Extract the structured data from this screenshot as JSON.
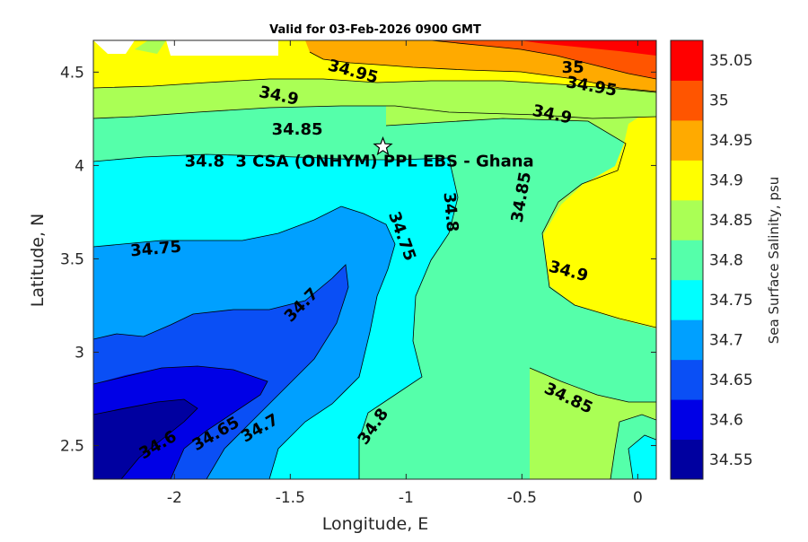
{
  "chart_data": {
    "type": "contour",
    "title": "Valid for 03-Feb-2026 0900 GMT",
    "xlabel": "Longitude, E",
    "ylabel": "Latitude, N",
    "xlim": [
      -2.35,
      0.08
    ],
    "ylim": [
      2.32,
      4.67
    ],
    "xticks": [
      -2,
      -1.5,
      -1,
      -0.5,
      0
    ],
    "xtick_labels": [
      "-2",
      "-1.5",
      "-1",
      "-0.5",
      "0"
    ],
    "yticks": [
      2.5,
      3,
      3.5,
      4,
      4.5
    ],
    "ytick_labels": [
      "2.5",
      "3",
      "3.5",
      "4",
      "4.5"
    ],
    "colorbar": {
      "label": "Sea Surface Salinity, psu",
      "levels": [
        34.55,
        34.6,
        34.65,
        34.7,
        34.75,
        34.8,
        34.85,
        34.9,
        34.95,
        35,
        35.05
      ],
      "tick_labels": [
        "34.55",
        "34.6",
        "34.65",
        "34.7",
        "34.75",
        "34.8",
        "34.85",
        "34.9",
        "34.95",
        "35",
        "35.05"
      ],
      "colors": [
        "#0000a0",
        "#0000e6",
        "#0a4ff5",
        "#00a0ff",
        "#00ffff",
        "#55ffaa",
        "#aaff55",
        "#ffff00",
        "#ffaa00",
        "#ff5500",
        "#ff0000"
      ]
    },
    "contour_labels": [
      {
        "text": "34.95",
        "lon": -1.23,
        "lat": 4.5,
        "angle": 15
      },
      {
        "text": "35",
        "lon": -0.28,
        "lat": 4.52,
        "angle": 0
      },
      {
        "text": "34.95",
        "lon": -0.2,
        "lat": 4.42,
        "angle": 10
      },
      {
        "text": "34.9",
        "lon": -1.55,
        "lat": 4.37,
        "angle": 12
      },
      {
        "text": "34.9",
        "lon": -0.37,
        "lat": 4.27,
        "angle": 12
      },
      {
        "text": "34.85",
        "lon": -1.47,
        "lat": 4.19,
        "angle": 0
      },
      {
        "text": "34.8",
        "lon": -1.87,
        "lat": 4.02,
        "angle": 0
      },
      {
        "text": "34.8",
        "lon": -0.81,
        "lat": 3.75,
        "angle": 85
      },
      {
        "text": "34.85",
        "lon": -0.5,
        "lat": 3.83,
        "angle": -80
      },
      {
        "text": "34.75",
        "lon": -2.08,
        "lat": 3.55,
        "angle": -5
      },
      {
        "text": "34.75",
        "lon": -1.02,
        "lat": 3.62,
        "angle": 70
      },
      {
        "text": "34.9",
        "lon": -0.3,
        "lat": 3.43,
        "angle": 15
      },
      {
        "text": "34.7",
        "lon": -1.45,
        "lat": 3.25,
        "angle": -45
      },
      {
        "text": "34.85",
        "lon": -0.3,
        "lat": 2.75,
        "angle": 25
      },
      {
        "text": "34.6",
        "lon": -2.07,
        "lat": 2.5,
        "angle": -30
      },
      {
        "text": "34.65",
        "lon": -1.82,
        "lat": 2.56,
        "angle": -30
      },
      {
        "text": "34.7",
        "lon": -1.63,
        "lat": 2.59,
        "angle": -30
      },
      {
        "text": "34.8",
        "lon": -1.14,
        "lat": 2.6,
        "angle": -55
      }
    ],
    "station": {
      "name": "3 CSA (ONHYM) PPL EBS  - Ghana",
      "lon": -1.1,
      "lat": 4.1
    }
  }
}
